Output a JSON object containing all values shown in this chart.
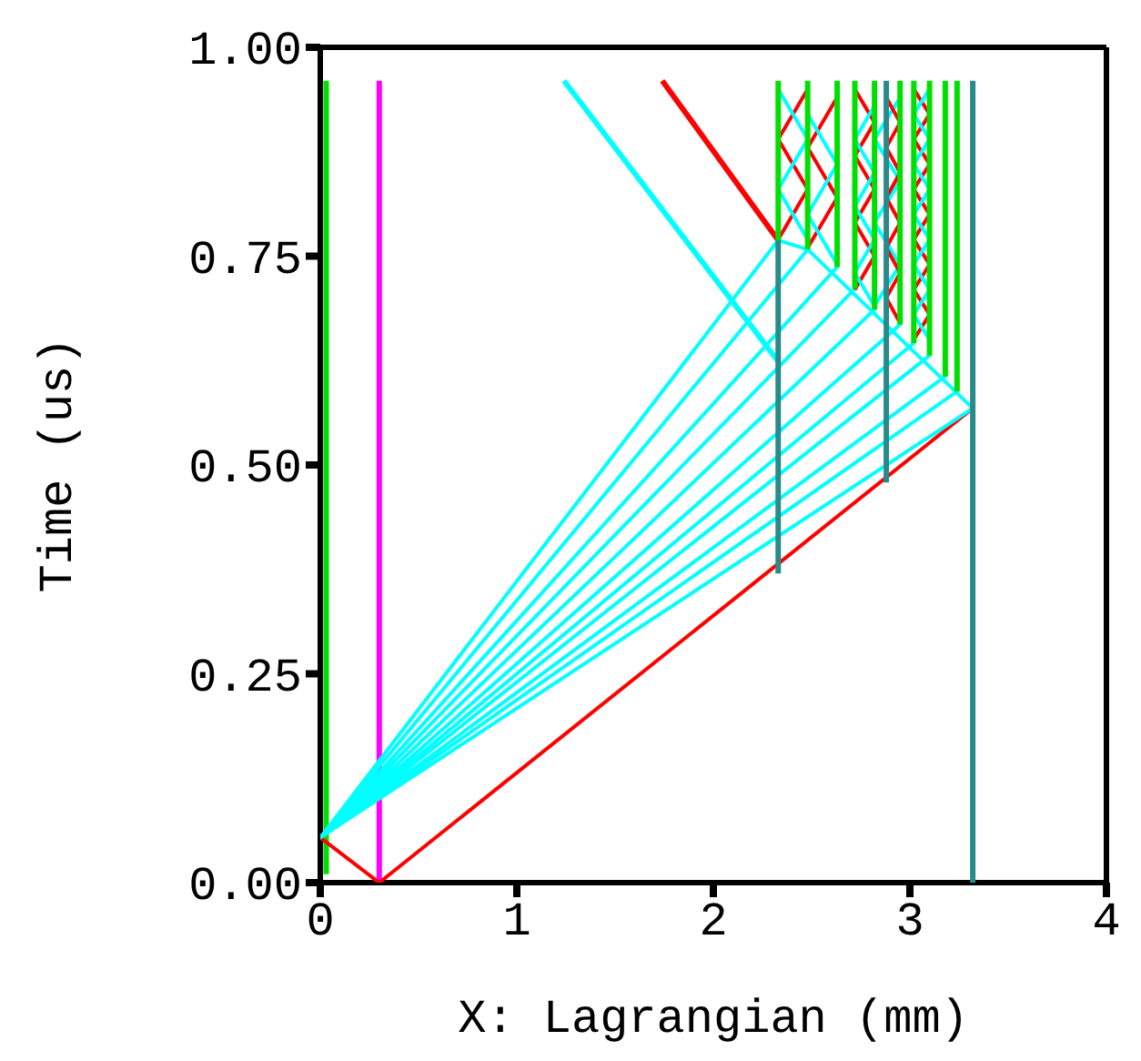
{
  "chart_data": {
    "type": "line",
    "xlabel": "X: Lagrangian (mm)",
    "ylabel": "Time (us)",
    "xlim": [
      0,
      4
    ],
    "xticks": [
      0,
      1,
      2,
      3,
      4
    ],
    "ylim": [
      0,
      1
    ],
    "yticks": [
      {
        "value": 0,
        "label": "0.00"
      },
      {
        "value": 0.25,
        "label": "0.25"
      },
      {
        "value": 0.5,
        "label": "0.50"
      },
      {
        "value": 0.75,
        "label": "0.75"
      },
      {
        "value": 1,
        "label": "1.00"
      }
    ],
    "grid": false,
    "marker": "none",
    "line_style": "solid",
    "series": [
      {
        "color": "#00e000",
        "x": [
          0.03,
          0.03
        ],
        "values": [
          0.01,
          0.96
        ]
      },
      {
        "color": "#ff00ff",
        "x": [
          0.3,
          0.3
        ],
        "values": [
          0,
          0.96
        ]
      },
      {
        "color": "#ff0000",
        "x": [
          0,
          0.3,
          3.32
        ],
        "values": [
          0.054,
          0,
          0.568
        ]
      },
      {
        "color": "#ff0000",
        "x": [
          1.74,
          2.33
        ],
        "values": [
          0.96,
          0.769
        ]
      },
      {
        "color": "#00ffff",
        "x": [
          1.24,
          2.33
        ],
        "values": [
          0.96,
          0.624
        ]
      },
      {
        "color": "#00ffff",
        "x": [
          0,
          2.33,
          2.48,
          0,
          2.63,
          0,
          2.72,
          0,
          2.82,
          0,
          2.95,
          0,
          3.02,
          0,
          3.1,
          0,
          3.18,
          0,
          3.24,
          0,
          3.32,
          2.48
        ],
        "values": [
          0.054,
          0.769,
          0.758,
          0.054,
          0.737,
          0.054,
          0.711,
          0.054,
          0.686,
          0.054,
          0.668,
          0.054,
          0.646,
          0.054,
          0.631,
          0.054,
          0.606,
          0.054,
          0.588,
          0.054,
          0.568,
          0.758
        ]
      },
      {
        "color": "#ff0000",
        "x": [
          2.33,
          2.48,
          2.33,
          2.48
        ],
        "values": [
          0.77,
          0.83,
          0.89,
          0.95
        ]
      },
      {
        "color": "#00ffff",
        "x": [
          2.48,
          2.33,
          2.48,
          2.33
        ],
        "values": [
          0.77,
          0.83,
          0.89,
          0.95
        ]
      },
      {
        "color": "#ff0000",
        "x": [
          2.48,
          2.63,
          2.48,
          2.63
        ],
        "values": [
          0.76,
          0.82,
          0.88,
          0.94
        ]
      },
      {
        "color": "#00ffff",
        "x": [
          2.63,
          2.48,
          2.63,
          2.48
        ],
        "values": [
          0.74,
          0.8,
          0.86,
          0.92
        ]
      },
      {
        "color": "#ff0000",
        "x": [
          2.72,
          2.82,
          2.72,
          2.82,
          2.72,
          2.82,
          2.72
        ],
        "values": [
          0.71,
          0.75,
          0.79,
          0.83,
          0.87,
          0.91,
          0.95
        ]
      },
      {
        "color": "#00ffff",
        "x": [
          2.82,
          2.72,
          2.82,
          2.72,
          2.82,
          2.72,
          2.82
        ],
        "values": [
          0.69,
          0.73,
          0.77,
          0.81,
          0.85,
          0.89,
          0.93
        ]
      },
      {
        "color": "#00ffff",
        "x": [
          2.82,
          2.95,
          2.82,
          2.95,
          2.82,
          2.95
        ],
        "values": [
          0.69,
          0.74,
          0.79,
          0.84,
          0.89,
          0.94
        ]
      },
      {
        "color": "#ff0000",
        "x": [
          2.95,
          2.88,
          2.95,
          2.88,
          2.95,
          2.88,
          2.95,
          2.88,
          2.95,
          2.88
        ],
        "values": [
          0.67,
          0.7,
          0.73,
          0.76,
          0.79,
          0.82,
          0.85,
          0.88,
          0.91,
          0.94
        ]
      },
      {
        "color": "#ff0000",
        "x": [
          3.02,
          3.1,
          3.02,
          3.1,
          3.02,
          3.1,
          3.02,
          3.1,
          3.02,
          3.1,
          3.02
        ],
        "values": [
          0.65,
          0.68,
          0.71,
          0.74,
          0.77,
          0.8,
          0.83,
          0.86,
          0.89,
          0.92,
          0.95
        ]
      },
      {
        "color": "#00ffff",
        "x": [
          3.1,
          3.02,
          3.1,
          3.02,
          3.1,
          3.02,
          3.1,
          3.02,
          3.1,
          3.02,
          3.1
        ],
        "values": [
          0.65,
          0.68,
          0.71,
          0.74,
          0.77,
          0.8,
          0.83,
          0.86,
          0.89,
          0.92,
          0.95
        ]
      },
      {
        "color": "#00e000",
        "x": [
          2.33,
          2.33
        ],
        "values": [
          0.769,
          0.96
        ]
      },
      {
        "color": "#00e000",
        "x": [
          2.48,
          2.48
        ],
        "values": [
          0.758,
          0.96
        ]
      },
      {
        "color": "#00e000",
        "x": [
          2.63,
          2.63
        ],
        "values": [
          0.737,
          0.96
        ]
      },
      {
        "color": "#00e000",
        "x": [
          2.72,
          2.72
        ],
        "values": [
          0.711,
          0.96
        ]
      },
      {
        "color": "#00e000",
        "x": [
          2.82,
          2.82
        ],
        "values": [
          0.686,
          0.96
        ]
      },
      {
        "color": "#00e000",
        "x": [
          2.95,
          2.95
        ],
        "values": [
          0.668,
          0.96
        ]
      },
      {
        "color": "#00e000",
        "x": [
          3.02,
          3.02
        ],
        "values": [
          0.646,
          0.96
        ]
      },
      {
        "color": "#00e000",
        "x": [
          3.1,
          3.1
        ],
        "values": [
          0.631,
          0.96
        ]
      },
      {
        "color": "#00e000",
        "x": [
          3.18,
          3.18
        ],
        "values": [
          0.606,
          0.96
        ]
      },
      {
        "color": "#00e000",
        "x": [
          3.24,
          3.24
        ],
        "values": [
          0.588,
          0.96
        ]
      },
      {
        "color": "#2a8a8a",
        "x": [
          2.33,
          2.33
        ],
        "values": [
          0.37,
          0.769
        ]
      },
      {
        "color": "#2a8a8a",
        "x": [
          2.88,
          2.88
        ],
        "values": [
          0.479,
          0.96
        ]
      },
      {
        "color": "#2a8a8a",
        "x": [
          3.32,
          3.32
        ],
        "values": [
          0,
          0.96
        ]
      }
    ]
  }
}
